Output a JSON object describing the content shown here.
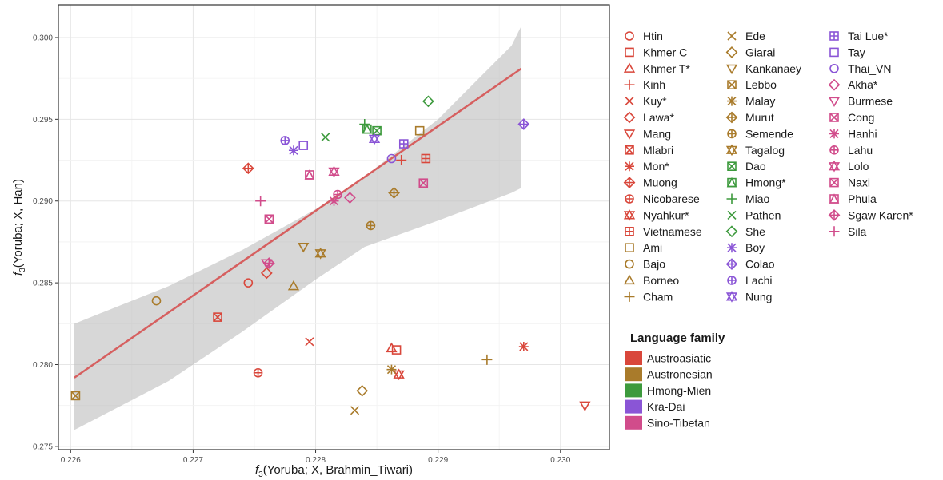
{
  "chart_data": {
    "type": "scatter",
    "xlabel_main": "f",
    "xlabel_sub": "3",
    "xlabel_rest": "(Yoruba; X, Brahmin_Tiwari)",
    "ylabel_main": "f",
    "ylabel_sub": "3",
    "ylabel_rest": "(Yoruba; X, Han)",
    "xlim": [
      0.2259,
      0.2304
    ],
    "ylim": [
      0.2748,
      0.302
    ],
    "x_ticks": [
      0.226,
      0.227,
      0.228,
      0.229,
      0.23
    ],
    "x_tick_labels": [
      "0.226",
      "0.227",
      "0.228",
      "0.229",
      "0.230"
    ],
    "y_ticks": [
      0.275,
      0.28,
      0.285,
      0.29,
      0.295,
      0.3
    ],
    "y_tick_labels": [
      "0.275",
      "0.280",
      "0.285",
      "0.290",
      "0.295",
      "0.300"
    ],
    "grid": true,
    "regression": {
      "x": [
        0.22603,
        0.22968
      ],
      "y": [
        0.2792,
        0.2981
      ],
      "color": "#d65f5f"
    },
    "confidence_band": {
      "x": [
        0.22603,
        0.2268,
        0.2274,
        0.228,
        0.2284,
        0.229,
        0.2296,
        0.22968
      ],
      "upper": [
        0.2825,
        0.2848,
        0.287,
        0.2895,
        0.2915,
        0.295,
        0.2995,
        0.3007
      ],
      "lower": [
        0.276,
        0.279,
        0.282,
        0.2852,
        0.2872,
        0.2888,
        0.2905,
        0.2908
      ]
    },
    "families": [
      {
        "name": "Austroasiatic",
        "color": "#d9473b"
      },
      {
        "name": "Austronesian",
        "color": "#a97b2b"
      },
      {
        "name": "Hmong-Mien",
        "color": "#3d9a3d"
      },
      {
        "name": "Kra-Dai",
        "color": "#8a55d6"
      },
      {
        "name": "Sino-Tibetan",
        "color": "#d14c8b"
      }
    ],
    "legend_title": "Language family",
    "legend_position": "right",
    "series": [
      {
        "name": "Htin",
        "family": 0,
        "shape": "circle",
        "points": [
          [
            0.22745,
            0.285
          ]
        ]
      },
      {
        "name": "Khmer C",
        "family": 0,
        "shape": "square",
        "points": [
          [
            0.22866,
            0.2809
          ]
        ]
      },
      {
        "name": "Khmer T*",
        "family": 0,
        "shape": "triangle",
        "points": [
          [
            0.22862,
            0.281
          ]
        ]
      },
      {
        "name": "Kinh",
        "family": 0,
        "shape": "plus",
        "points": [
          [
            0.2287,
            0.2925
          ]
        ]
      },
      {
        "name": "Kuy*",
        "family": 0,
        "shape": "cross",
        "points": [
          [
            0.22795,
            0.2814
          ]
        ]
      },
      {
        "name": "Lawa*",
        "family": 0,
        "shape": "diamond",
        "points": [
          [
            0.2276,
            0.2856
          ]
        ]
      },
      {
        "name": "Mang",
        "family": 0,
        "shape": "triangle-down",
        "points": [
          [
            0.2302,
            0.2775
          ]
        ]
      },
      {
        "name": "Mlabri",
        "family": 0,
        "shape": "square-cross",
        "points": [
          [
            0.2272,
            0.2829
          ]
        ]
      },
      {
        "name": "Mon*",
        "family": 0,
        "shape": "asterisk",
        "points": [
          [
            0.2297,
            0.2811
          ]
        ]
      },
      {
        "name": "Muong",
        "family": 0,
        "shape": "diamond-plus",
        "points": [
          [
            0.22745,
            0.292
          ]
        ]
      },
      {
        "name": "Nicobarese",
        "family": 0,
        "shape": "circle-plus",
        "points": [
          [
            0.22753,
            0.2795
          ]
        ]
      },
      {
        "name": "Nyahkur*",
        "family": 0,
        "shape": "star-david",
        "points": [
          [
            0.22868,
            0.2794
          ]
        ]
      },
      {
        "name": "Vietnamese",
        "family": 0,
        "shape": "square-plus",
        "points": [
          [
            0.2289,
            0.2926
          ]
        ]
      },
      {
        "name": "Ami",
        "family": 1,
        "shape": "square",
        "points": [
          [
            0.22885,
            0.2943
          ]
        ]
      },
      {
        "name": "Bajo",
        "family": 1,
        "shape": "circle",
        "points": [
          [
            0.2267,
            0.2839
          ]
        ]
      },
      {
        "name": "Borneo",
        "family": 1,
        "shape": "triangle",
        "points": [
          [
            0.22782,
            0.2848
          ]
        ]
      },
      {
        "name": "Cham",
        "family": 1,
        "shape": "plus",
        "points": [
          [
            0.2294,
            0.2803
          ]
        ]
      },
      {
        "name": "Ede",
        "family": 1,
        "shape": "cross",
        "points": [
          [
            0.22832,
            0.2772
          ]
        ]
      },
      {
        "name": "Giarai",
        "family": 1,
        "shape": "diamond",
        "points": [
          [
            0.22838,
            0.2784
          ]
        ]
      },
      {
        "name": "Kankanaey",
        "family": 1,
        "shape": "triangle-down",
        "points": [
          [
            0.2279,
            0.2872
          ]
        ]
      },
      {
        "name": "Lebbo",
        "family": 1,
        "shape": "square-cross",
        "points": [
          [
            0.22604,
            0.2781
          ]
        ]
      },
      {
        "name": "Malay",
        "family": 1,
        "shape": "asterisk",
        "points": [
          [
            0.22862,
            0.2797
          ]
        ]
      },
      {
        "name": "Murut",
        "family": 1,
        "shape": "diamond-plus",
        "points": [
          [
            0.22864,
            0.2905
          ]
        ]
      },
      {
        "name": "Semende",
        "family": 1,
        "shape": "circle-plus",
        "points": [
          [
            0.22845,
            0.2885
          ]
        ]
      },
      {
        "name": "Tagalog",
        "family": 1,
        "shape": "star-david",
        "points": [
          [
            0.22804,
            0.2868
          ]
        ]
      },
      {
        "name": "Dao",
        "family": 2,
        "shape": "square-cross",
        "points": [
          [
            0.2285,
            0.2943
          ]
        ]
      },
      {
        "name": "Hmong*",
        "family": 2,
        "shape": "square-triangle",
        "points": [
          [
            0.22842,
            0.2944
          ]
        ]
      },
      {
        "name": "Miao",
        "family": 2,
        "shape": "plus",
        "points": [
          [
            0.2284,
            0.2947
          ]
        ]
      },
      {
        "name": "Pathen",
        "family": 2,
        "shape": "cross",
        "points": [
          [
            0.22808,
            0.2939
          ]
        ]
      },
      {
        "name": "She",
        "family": 2,
        "shape": "diamond",
        "points": [
          [
            0.22892,
            0.2961
          ]
        ]
      },
      {
        "name": "Boy",
        "family": 3,
        "shape": "asterisk",
        "points": [
          [
            0.22782,
            0.2931
          ]
        ]
      },
      {
        "name": "Colao",
        "family": 3,
        "shape": "diamond-plus",
        "points": [
          [
            0.2297,
            0.2947
          ]
        ]
      },
      {
        "name": "Lachi",
        "family": 3,
        "shape": "circle-plus",
        "points": [
          [
            0.22775,
            0.2937
          ]
        ]
      },
      {
        "name": "Nung",
        "family": 3,
        "shape": "star-david",
        "points": [
          [
            0.22848,
            0.2938
          ]
        ]
      },
      {
        "name": "Tai Lue*",
        "family": 3,
        "shape": "square-plus",
        "points": [
          [
            0.22872,
            0.2935
          ]
        ]
      },
      {
        "name": "Tay",
        "family": 3,
        "shape": "square",
        "points": [
          [
            0.2279,
            0.2934
          ]
        ]
      },
      {
        "name": "Thai_VN",
        "family": 3,
        "shape": "circle",
        "points": [
          [
            0.22862,
            0.2926
          ]
        ]
      },
      {
        "name": "Akha*",
        "family": 4,
        "shape": "diamond",
        "points": [
          [
            0.22828,
            0.2902
          ]
        ]
      },
      {
        "name": "Burmese",
        "family": 4,
        "shape": "triangle-down",
        "points": [
          [
            0.2276,
            0.2862
          ]
        ]
      },
      {
        "name": "Cong",
        "family": 4,
        "shape": "square-cross",
        "points": [
          [
            0.22762,
            0.2889
          ]
        ]
      },
      {
        "name": "Hanhi",
        "family": 4,
        "shape": "asterisk",
        "points": [
          [
            0.22815,
            0.29
          ]
        ]
      },
      {
        "name": "Lahu",
        "family": 4,
        "shape": "circle-plus",
        "points": [
          [
            0.22818,
            0.2904
          ]
        ]
      },
      {
        "name": "Lolo",
        "family": 4,
        "shape": "star-david",
        "points": [
          [
            0.22815,
            0.2918
          ]
        ]
      },
      {
        "name": "Naxi",
        "family": 4,
        "shape": "square-cross",
        "points": [
          [
            0.22888,
            0.2911
          ]
        ]
      },
      {
        "name": "Phula",
        "family": 4,
        "shape": "square-triangle",
        "points": [
          [
            0.22795,
            0.2916
          ]
        ]
      },
      {
        "name": "Sgaw Karen*",
        "family": 4,
        "shape": "diamond-plus",
        "points": [
          [
            0.22762,
            0.2862
          ]
        ]
      },
      {
        "name": "Sila",
        "family": 4,
        "shape": "plus",
        "points": [
          [
            0.22755,
            0.29
          ]
        ]
      }
    ]
  }
}
